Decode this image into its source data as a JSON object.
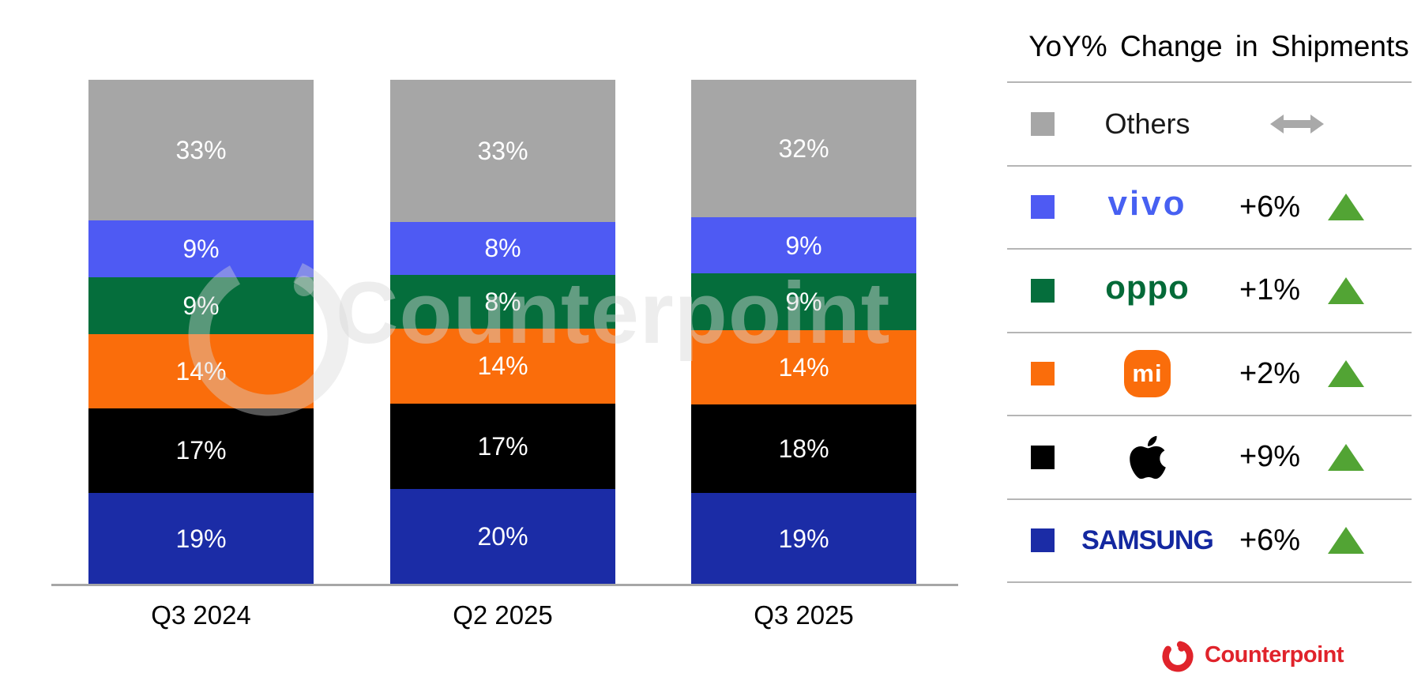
{
  "page": {
    "background": "#ffffff"
  },
  "watermark": {
    "text": "Counterpoint"
  },
  "chart_data": {
    "type": "bar",
    "stacked": true,
    "unit": "%",
    "categories": [
      "Q3 2024",
      "Q2 2025",
      "Q3 2025"
    ],
    "series": [
      {
        "name": "Samsung",
        "color": "#1b2ca6",
        "values": [
          19,
          20,
          19
        ]
      },
      {
        "name": "Apple",
        "color": "#000000",
        "values": [
          17,
          17,
          18
        ]
      },
      {
        "name": "Xiaomi",
        "color": "#fa6d0b",
        "values": [
          14,
          14,
          14
        ]
      },
      {
        "name": "OPPO",
        "color": "#056e3c",
        "values": [
          9,
          8,
          9
        ]
      },
      {
        "name": "vivo",
        "color": "#4e5af3",
        "values": [
          9,
          8,
          9
        ]
      },
      {
        "name": "Others",
        "color": "#a6a6a6",
        "values": [
          33,
          33,
          32
        ]
      }
    ],
    "stack_order": "bottom-to-top",
    "value_labels": "inside-center",
    "ylim": [
      0,
      100
    ],
    "grid": false,
    "legend_position": "right-table"
  },
  "legend": {
    "title": "YoY% Change in Shipments",
    "rows": [
      {
        "brand": "Others",
        "logo_text": "Others",
        "logo_color": "#1a1a1a",
        "swatch": "#a6a6a6",
        "change": "",
        "trend": "flat"
      },
      {
        "brand": "vivo",
        "logo_text": "vivo",
        "logo_color": "#4760f2",
        "swatch": "#4e5af3",
        "change": "+6%",
        "trend": "up"
      },
      {
        "brand": "OPPO",
        "logo_text": "oppo",
        "logo_color": "#046a38",
        "swatch": "#056e3c",
        "change": "+1%",
        "trend": "up"
      },
      {
        "brand": "Xiaomi",
        "logo_text": "mi",
        "logo_color": "#ffffff",
        "swatch": "#fa6d0b",
        "change": "+2%",
        "trend": "up"
      },
      {
        "brand": "Apple",
        "logo_text": "",
        "logo_color": "#000000",
        "swatch": "#000000",
        "change": "+9%",
        "trend": "up"
      },
      {
        "brand": "Samsung",
        "logo_text": "SAMSUNG",
        "logo_color": "#1428a0",
        "swatch": "#1b2ca6",
        "change": "+6%",
        "trend": "up"
      }
    ]
  },
  "footer": {
    "brand": "Counterpoint"
  },
  "colors": {
    "trend_up_green": "#52a434",
    "flat_arrow_gray": "#a9a9a9",
    "counterpoint_red": "#e0232b",
    "axis_gray": "#a6a6a6",
    "divider_gray": "#b5b5b5"
  }
}
